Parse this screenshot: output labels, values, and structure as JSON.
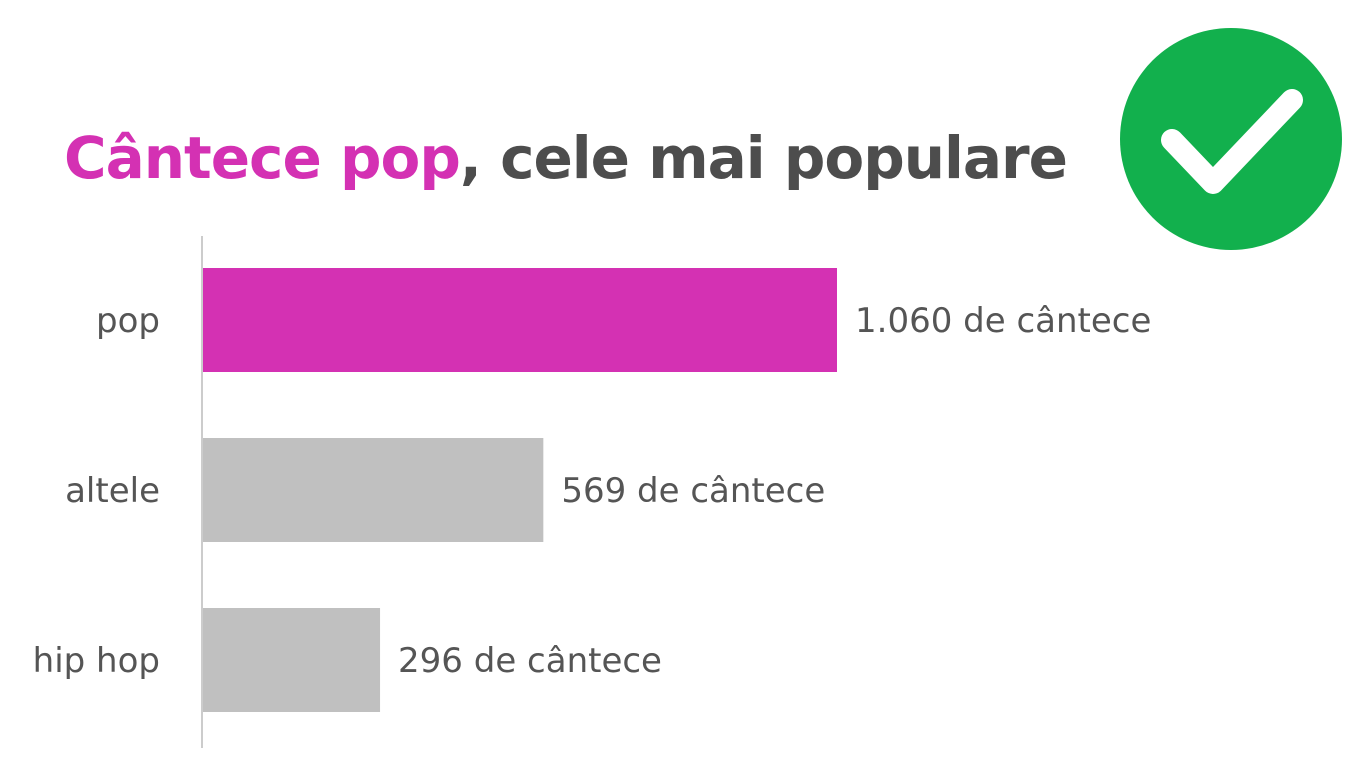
{
  "title": {
    "highlight": "Cântece pop",
    "rest": ", cele mai populare"
  },
  "badge": {
    "icon": "check-circle-icon",
    "color": "#12b04d"
  },
  "colors": {
    "highlight": "#d431b3",
    "neutral": "#c0c0c0",
    "text": "#555555",
    "title": "#4d4d4d"
  },
  "chart_data": {
    "type": "bar",
    "orientation": "horizontal",
    "title": "Cântece pop, cele mai populare",
    "categories": [
      "pop",
      "altele",
      "hip hop"
    ],
    "values": [
      1060,
      569,
      296
    ],
    "value_labels": [
      "1.060 de cântece",
      "569 de cântece",
      "296 de cântece"
    ],
    "bar_colors": [
      "#d431b3",
      "#c0c0c0",
      "#c0c0c0"
    ],
    "xlim": [
      0,
      1060
    ],
    "grid": false,
    "legend": "none"
  }
}
